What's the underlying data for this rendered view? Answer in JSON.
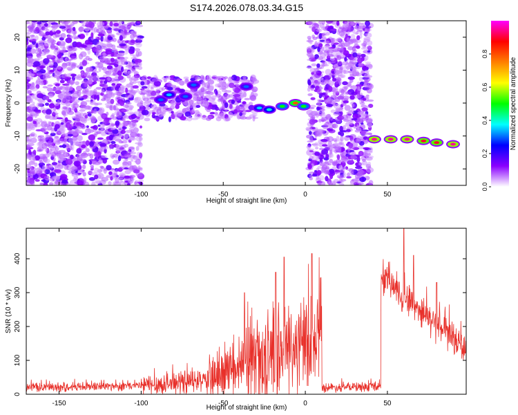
{
  "figure_title": "S174.2026.078.03.34.G15",
  "chart_data": [
    {
      "type": "heatmap",
      "title": "S174.2026.078.03.34.G15",
      "xlabel": "Height of straight line (km)",
      "ylabel": "Frequency (Hz)",
      "xlim": [
        -170,
        98
      ],
      "ylim": [
        -25,
        25
      ],
      "xticks": [
        -150,
        -100,
        -50,
        0,
        50
      ],
      "yticks": [
        -20,
        -10,
        0,
        10,
        20
      ],
      "colorbar": {
        "label": "Normalized spectral amplitude",
        "range": [
          0,
          1
        ],
        "ticks": [
          0.0,
          0.2,
          0.4,
          0.6,
          0.8
        ],
        "tick_labels": [
          "0.0",
          "0.2",
          "0.4",
          "0.6",
          "0.8"
        ],
        "colors": [
          "#ffffff",
          "#8a00ff",
          "#0000ff",
          "#00ffff",
          "#00ff00",
          "#ffff00",
          "#ff8000",
          "#ff0000",
          "#ff00ff"
        ]
      },
      "regions": [
        {
          "x": [
            -170,
            -100
          ],
          "freq": [
            -25,
            25
          ],
          "amplitude": 0.05,
          "desc": "scattered noise"
        },
        {
          "x": [
            -100,
            -30
          ],
          "freq": [
            -5,
            8
          ],
          "amplitude": 0.15,
          "desc": "dense band"
        },
        {
          "x": [
            2,
            40
          ],
          "freq": [
            -25,
            25
          ],
          "amplitude": 0.05,
          "desc": "scattered noise"
        }
      ],
      "ridge": [
        {
          "x": -88,
          "freq": 1,
          "amp": 0.3
        },
        {
          "x": -83,
          "freq": 2.5,
          "amp": 0.35
        },
        {
          "x": -73,
          "freq": 2,
          "amp": 0.3
        },
        {
          "x": -68,
          "freq": 5.5,
          "amp": 0.3
        },
        {
          "x": -36,
          "freq": 5,
          "amp": 0.3
        },
        {
          "x": -28,
          "freq": -1.5,
          "amp": 0.35
        },
        {
          "x": -22,
          "freq": -2,
          "amp": 0.4
        },
        {
          "x": -14,
          "freq": -1,
          "amp": 0.5
        },
        {
          "x": -6,
          "freq": 0,
          "amp": 0.8
        },
        {
          "x": -1,
          "freq": -1,
          "amp": 0.5
        },
        {
          "x": 42,
          "freq": -11,
          "amp": 0.95
        },
        {
          "x": 52,
          "freq": -11,
          "amp": 0.95
        },
        {
          "x": 62,
          "freq": -11,
          "amp": 0.95
        },
        {
          "x": 72,
          "freq": -11.5,
          "amp": 0.9
        },
        {
          "x": 80,
          "freq": -12,
          "amp": 0.9
        },
        {
          "x": 90,
          "freq": -12.5,
          "amp": 0.95
        }
      ]
    },
    {
      "type": "line",
      "xlabel": "Height of straight line (km)",
      "ylabel": "SNR (10 * v/v)",
      "xlim": [
        -170,
        98
      ],
      "ylim": [
        0,
        490
      ],
      "xticks": [
        -150,
        -100,
        -50,
        0,
        50
      ],
      "yticks": [
        0,
        100,
        200,
        300,
        400
      ],
      "series": [
        {
          "name": "SNR",
          "color": "#e8302a",
          "segments": [
            {
              "x0": -170,
              "x1": -100,
              "mean_start": 20,
              "mean_end": 25,
              "spread": 25
            },
            {
              "x0": -100,
              "x1": -60,
              "mean_start": 25,
              "mean_end": 40,
              "spread": 60
            },
            {
              "x0": -60,
              "x1": -40,
              "mean_start": 40,
              "mean_end": 70,
              "spread": 120
            },
            {
              "x0": -40,
              "x1": -20,
              "mean_start": 70,
              "mean_end": 120,
              "spread": 230
            },
            {
              "x0": -20,
              "x1": 10,
              "mean_start": 120,
              "mean_end": 150,
              "spread": 260
            },
            {
              "x0": 10,
              "x1": 46,
              "mean_start": 20,
              "mean_end": 22,
              "spread": 25
            },
            {
              "x0": 46,
              "x1": 98,
              "mean_start": 350,
              "mean_end": 130,
              "spread": 90
            }
          ],
          "peaks": [
            {
              "x": -37,
              "y": 300
            },
            {
              "x": -18,
              "y": 360
            },
            {
              "x": -13,
              "y": 405
            },
            {
              "x": 4,
              "y": 415
            },
            {
              "x": 60,
              "y": 490
            },
            {
              "x": 66,
              "y": 410
            },
            {
              "x": 80,
              "y": 330
            }
          ]
        }
      ]
    }
  ]
}
